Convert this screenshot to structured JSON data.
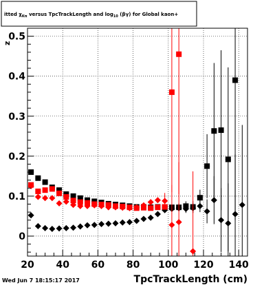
{
  "chart_data": {
    "type": "scatter",
    "title": "itted  χ  versus TpcTrackLength and log   (βγ) for Global kaon+",
    "title_parts": {
      "pre": "itted  ",
      "chi": "χ",
      "sub1": "Kπ",
      "mid": "  versus TpcTrackLength and log",
      "sub2": "10",
      "post": " (βγ) for Global kaon+"
    },
    "xlabel": "TpcTrackLength (cm)",
    "ylabel": "z",
    "xlim": [
      20,
      145
    ],
    "ylim": [
      -0.05,
      0.52
    ],
    "x_ticks": [
      20,
      40,
      60,
      80,
      100,
      120,
      140
    ],
    "y_ticks": [
      0,
      0.1,
      0.2,
      0.3,
      0.4,
      0.5
    ],
    "y_tick_labels": [
      "0",
      "0.1",
      "0.2",
      "0.3",
      "0.4",
      "0.5"
    ],
    "grid": true,
    "timestamp": "Wed Jun  7 18:15:17 2017",
    "colors": {
      "black_series": "#000000",
      "red_series": "#ff0000"
    },
    "series": [
      {
        "marker": "square",
        "color": "#000000",
        "x": [
          22,
          26,
          30,
          34,
          38,
          42,
          46,
          50,
          54,
          58,
          62,
          66,
          70,
          74,
          78,
          82,
          86,
          90,
          94,
          98,
          102,
          106,
          110,
          114,
          118,
          122,
          126,
          130,
          134,
          138
        ],
        "y": [
          0.16,
          0.145,
          0.135,
          0.122,
          0.115,
          0.105,
          0.1,
          0.095,
          0.09,
          0.087,
          0.084,
          0.081,
          0.079,
          0.077,
          0.075,
          0.073,
          0.073,
          0.072,
          0.073,
          0.072,
          0.072,
          0.072,
          0.075,
          0.073,
          0.096,
          0.175,
          0.263,
          0.265,
          0.192,
          0.39
        ],
        "err": [
          0.004,
          0.003,
          0.003,
          0.003,
          0.003,
          0.003,
          0.002,
          0.002,
          0.002,
          0.002,
          0.002,
          0.002,
          0.002,
          0.002,
          0.002,
          0.002,
          0.002,
          0.002,
          0.003,
          0.004,
          0.006,
          0.01,
          0.012,
          0.015,
          0.02,
          0.08,
          0.17,
          0.2,
          0.23,
          0.35
        ]
      },
      {
        "marker": "diamond",
        "color": "#000000",
        "x": [
          22,
          26,
          30,
          34,
          38,
          42,
          46,
          50,
          54,
          58,
          62,
          66,
          70,
          74,
          78,
          82,
          86,
          90,
          94,
          98,
          102,
          106,
          110,
          114,
          118,
          122,
          126,
          130,
          134,
          138,
          142
        ],
        "y": [
          0.052,
          0.025,
          0.02,
          0.018,
          0.019,
          0.02,
          0.021,
          0.024,
          0.027,
          0.028,
          0.03,
          0.031,
          0.032,
          0.034,
          0.035,
          0.038,
          0.043,
          0.046,
          0.055,
          0.065,
          0.068,
          0.07,
          0.068,
          0.07,
          0.075,
          0.062,
          0.09,
          0.04,
          0.032,
          0.055,
          0.078
        ],
        "err": [
          0.003,
          0.002,
          0.002,
          0.002,
          0.002,
          0.002,
          0.002,
          0.002,
          0.002,
          0.002,
          0.002,
          0.002,
          0.002,
          0.002,
          0.002,
          0.002,
          0.002,
          0.003,
          0.003,
          0.004,
          0.006,
          0.008,
          0.01,
          0.012,
          0.015,
          0.03,
          0.06,
          0.08,
          0.1,
          0.15,
          0.2
        ]
      },
      {
        "marker": "square",
        "color": "#ff0000",
        "x": [
          22,
          26,
          30,
          34,
          38,
          42,
          46,
          50,
          54,
          58,
          62,
          66,
          70,
          74,
          78,
          82,
          86,
          90,
          94,
          98,
          102,
          106
        ],
        "y": [
          0.128,
          0.112,
          0.115,
          0.118,
          0.107,
          0.098,
          0.089,
          0.085,
          0.083,
          0.08,
          0.079,
          0.078,
          0.075,
          0.074,
          0.072,
          0.07,
          0.071,
          0.07,
          0.072,
          0.073,
          0.36,
          0.455
        ],
        "err": [
          0.004,
          0.003,
          0.003,
          0.003,
          0.003,
          0.003,
          0.003,
          0.002,
          0.002,
          0.002,
          0.002,
          0.002,
          0.002,
          0.002,
          0.002,
          0.002,
          0.003,
          0.003,
          0.004,
          0.005,
          0.25,
          0.35
        ]
      },
      {
        "marker": "diamond",
        "color": "#ff0000",
        "x": [
          22,
          26,
          30,
          34,
          38,
          42,
          46,
          50,
          54,
          58,
          62,
          66,
          70,
          74,
          78,
          82,
          86,
          90,
          94,
          98,
          102,
          106,
          114
        ],
        "y": [
          0.125,
          0.098,
          0.095,
          0.095,
          0.082,
          0.086,
          0.078,
          0.075,
          0.075,
          0.077,
          0.075,
          0.072,
          0.072,
          0.071,
          0.07,
          0.072,
          0.077,
          0.085,
          0.09,
          0.088,
          0.028,
          0.035,
          -0.038
        ],
        "err": [
          0.004,
          0.003,
          0.003,
          0.003,
          0.003,
          0.003,
          0.003,
          0.002,
          0.002,
          0.002,
          0.002,
          0.002,
          0.002,
          0.002,
          0.002,
          0.002,
          0.003,
          0.004,
          0.006,
          0.02,
          0.1,
          0.15,
          0.2
        ]
      }
    ]
  }
}
